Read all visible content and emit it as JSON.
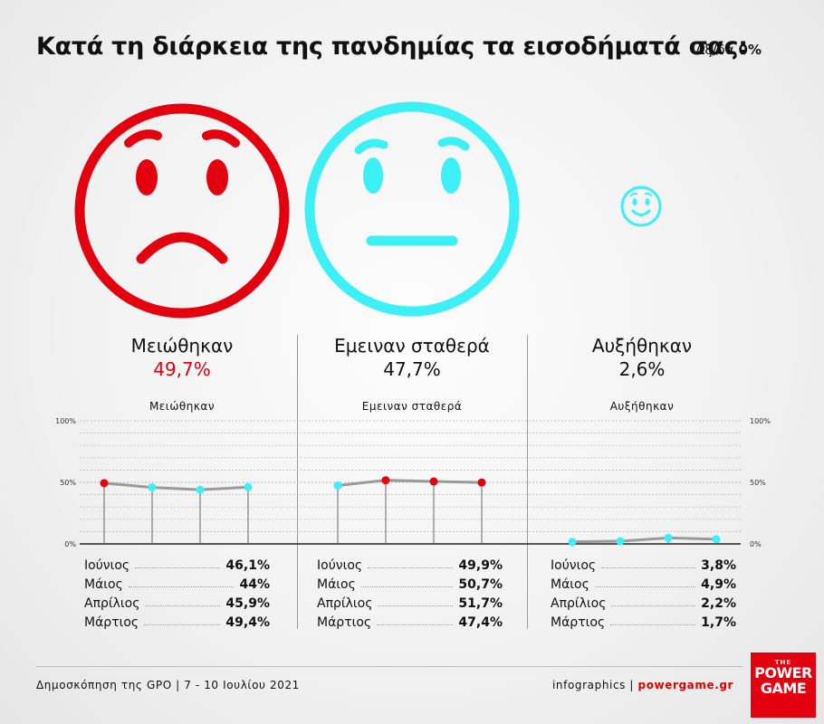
{
  "header": {
    "title": "Κατά τη διάρκεια της πανδημίας τα εισοδήματά σας:",
    "dkna_label": "Δξ/δα",
    "dkna_value": "0%"
  },
  "faces": [
    {
      "icon": "sad-face-icon",
      "color": "#e3000f"
    },
    {
      "icon": "neutral-face-icon",
      "color": "#3df0f6"
    },
    {
      "icon": "smile-face-icon",
      "color": "#3df0f6"
    }
  ],
  "colors": {
    "red": "#e3000f",
    "cyan": "#3df0f6",
    "line": "#9a9a9a"
  },
  "chart_data": {
    "type": "line",
    "ylim": [
      0,
      100
    ],
    "y_ticks": [
      "0%",
      "50%",
      "100%"
    ],
    "categories": [
      "Μάρτιος",
      "Απρίλιος",
      "Μάιος",
      "Ιούνιος"
    ],
    "groups": [
      {
        "label": "Μειώθηκαν",
        "summary": "49,7%",
        "sub_label": "Μειώθηκαν",
        "values": [
          49.4,
          45.9,
          44,
          46.1
        ],
        "value_labels": [
          "49,4%",
          "45,9%",
          "44%",
          "46,1%"
        ]
      },
      {
        "label": "Εμειναν σταθερά",
        "summary": "47,7%",
        "sub_label": "Εμειναν σταθερά",
        "values": [
          47.4,
          51.7,
          50.7,
          49.9
        ],
        "value_labels": [
          "47,4%",
          "51,7%",
          "50,7%",
          "49,9%"
        ]
      },
      {
        "label": "Αυξήθηκαν",
        "summary": "2,6%",
        "sub_label": "Αυξήθηκαν",
        "values": [
          1.7,
          2.2,
          4.9,
          3.8
        ],
        "value_labels": [
          "1,7%",
          "2,2%",
          "4,9%",
          "3,8%"
        ]
      }
    ]
  },
  "footer": {
    "source": "Δημοσκόπηση της GPO | 7 - 10 Ιουλίου 2021",
    "credit_prefix": "infographics | ",
    "credit_site": "powergame.gr"
  },
  "logo": {
    "line1": "THE",
    "line2": "POWER",
    "line3": "GAME"
  }
}
